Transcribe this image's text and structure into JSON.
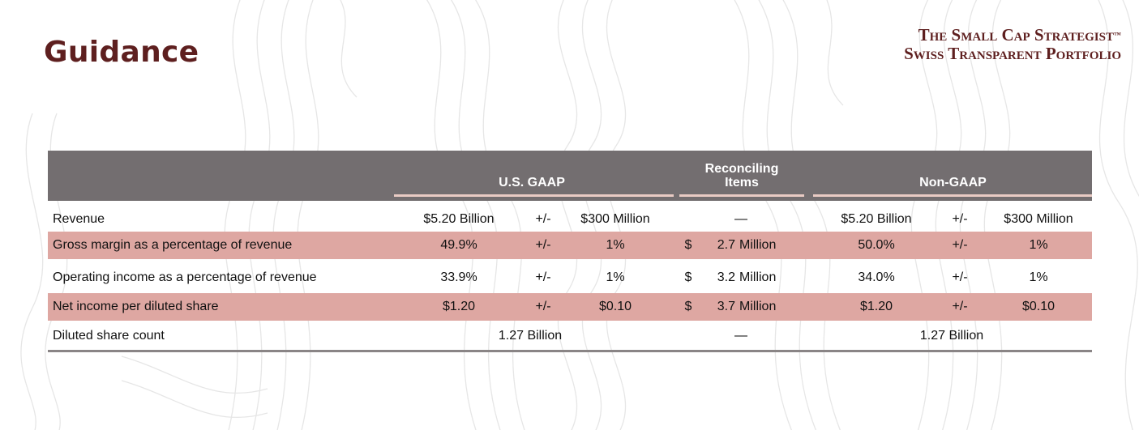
{
  "title": "Guidance",
  "brand": {
    "line1": "The Small Cap Strategist",
    "tm": "™",
    "line2": "Swiss Transparent Portfolio"
  },
  "table": {
    "headers": {
      "gaap": "U.S. GAAP",
      "reconciling_line1": "Reconciling",
      "reconciling_line2": "Items",
      "nongaap": "Non-GAAP"
    },
    "rows": [
      {
        "label": "Revenue",
        "gaap_value": "$5.20 Billion",
        "gaap_pm": "+/-",
        "gaap_range": "$300 Million",
        "rec_dollar": "",
        "rec_amount": "—",
        "rec_unit": "",
        "ng_value": "$5.20 Billion",
        "ng_pm": "+/-",
        "ng_range": "$300 Million",
        "highlight": false
      },
      {
        "label": "Gross margin as a percentage of revenue",
        "gaap_value": "49.9%",
        "gaap_pm": "+/-",
        "gaap_range": "1%",
        "rec_dollar": "$",
        "rec_amount": "2.7",
        "rec_unit": "Million",
        "ng_value": "50.0%",
        "ng_pm": "+/-",
        "ng_range": "1%",
        "highlight": true
      },
      {
        "label": "Operating income as a percentage of revenue",
        "gaap_value": "33.9%",
        "gaap_pm": "+/-",
        "gaap_range": "1%",
        "rec_dollar": "$",
        "rec_amount": "3.2",
        "rec_unit": "Million",
        "ng_value": "34.0%",
        "ng_pm": "+/-",
        "ng_range": "1%",
        "highlight": false
      },
      {
        "label": "Net income per diluted share",
        "gaap_value": "$1.20",
        "gaap_pm": "+/-",
        "gaap_range": "$0.10",
        "rec_dollar": "$",
        "rec_amount": "3.7",
        "rec_unit": "Million",
        "ng_value": "$1.20",
        "ng_pm": "+/-",
        "ng_range": "$0.10",
        "highlight": true
      }
    ],
    "share_row": {
      "label": "Diluted share count",
      "gaap_value": "1.27 Billion",
      "rec_amount": "—",
      "ng_value": "1.27 Billion"
    }
  }
}
